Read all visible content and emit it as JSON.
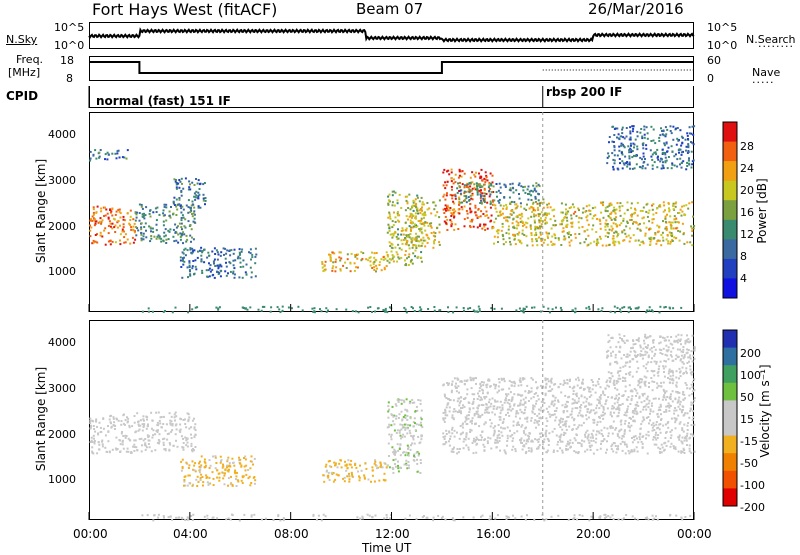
{
  "header": {
    "radar": "Fort Hays West (fitACF)",
    "beam": "Beam 07",
    "date": "26/Mar/2016"
  },
  "summary_panel": {
    "nsky_label": "N.Sky",
    "nsky_ticks": [
      "10^5",
      "10^0"
    ],
    "nsearch_label": "N.Search",
    "nsearch_ticks": [
      "10^5",
      "10^0"
    ],
    "freq_label_1": "Freq.",
    "freq_label_2": "[MHz]",
    "freq_ticks": [
      "18",
      "8"
    ],
    "nave_label": "Nave",
    "nave_ticks": [
      "60",
      "0"
    ],
    "cpid_label": "CPID",
    "cpid_modes": [
      "normal (fast) 151 IF",
      "rbsp 200 IF"
    ]
  },
  "power_panel": {
    "ylabel": "Slant Range [km]",
    "yticks": [
      "4000",
      "3000",
      "2000",
      "1000"
    ],
    "colorbar_label": "Power [dB]",
    "colorbar_ticks": [
      "28",
      "24",
      "20",
      "16",
      "12",
      "8",
      "4"
    ]
  },
  "velocity_panel": {
    "ylabel": "Slant Range [km]",
    "yticks": [
      "4000",
      "3000",
      "2000",
      "1000"
    ],
    "colorbar_label": "Velocity [m s⁻¹]",
    "colorbar_ticks": [
      "200",
      "100",
      "50",
      "15",
      "-15",
      "-50",
      "-100",
      "-200"
    ]
  },
  "xaxis": {
    "label": "Time UT",
    "ticks": [
      "00:00",
      "04:00",
      "08:00",
      "12:00",
      "16:00",
      "20:00",
      "00:00"
    ]
  },
  "colors": {
    "power_scale": [
      "#1010e0",
      "#2040c0",
      "#3a6aa0",
      "#3a8a70",
      "#7aa040",
      "#c8c820",
      "#f0a010",
      "#f06010",
      "#e01010"
    ],
    "velocity_scale": [
      "#e00000",
      "#f05000",
      "#f08000",
      "#f0b020",
      "#c8c8c8",
      "#c8c8c8",
      "#70c040",
      "#40a060",
      "#3070a0",
      "#2030b0"
    ]
  },
  "chart_data": [
    {
      "type": "heatmap",
      "title": "Power",
      "xlabel": "Time UT",
      "ylabel": "Slant Range [km]",
      "xlim": [
        0,
        24
      ],
      "ylim": [
        0,
        4600
      ],
      "colorbar": {
        "label": "Power [dB]",
        "range": [
          0,
          32
        ]
      },
      "blobs": [
        {
          "t0": 0.0,
          "t1": 1.8,
          "r0": 1550,
          "r1": 2450,
          "power": 26
        },
        {
          "t0": 0.0,
          "t1": 1.5,
          "r0": 3500,
          "r1": 3750,
          "power": 10
        },
        {
          "t0": 1.8,
          "t1": 4.2,
          "r0": 1600,
          "r1": 2500,
          "power": 12
        },
        {
          "t0": 3.3,
          "t1": 4.6,
          "r0": 2400,
          "r1": 3100,
          "power": 10
        },
        {
          "t0": 3.6,
          "t1": 6.6,
          "r0": 800,
          "r1": 1500,
          "power": 9
        },
        {
          "t0": 9.2,
          "t1": 11.8,
          "r0": 950,
          "r1": 1400,
          "power": 22
        },
        {
          "t0": 11.8,
          "t1": 13.2,
          "r0": 1100,
          "r1": 2800,
          "power": 18
        },
        {
          "t0": 12.5,
          "t1": 13.9,
          "r0": 1500,
          "r1": 2600,
          "power": 20
        },
        {
          "t0": 14.0,
          "t1": 16.0,
          "r0": 1900,
          "r1": 3300,
          "power": 27
        },
        {
          "t0": 16.0,
          "t1": 24.0,
          "r0": 1550,
          "r1": 2550,
          "power": 20
        },
        {
          "t0": 14.5,
          "t1": 18.0,
          "r0": 2500,
          "r1": 3000,
          "power": 12
        },
        {
          "t0": 20.5,
          "t1": 24.0,
          "r0": 3300,
          "r1": 4300,
          "power": 9
        }
      ]
    },
    {
      "type": "heatmap",
      "title": "Velocity",
      "xlabel": "Time UT",
      "ylabel": "Slant Range [km]",
      "xlim": [
        0,
        24
      ],
      "ylim": [
        0,
        4600
      ],
      "colorbar": {
        "label": "Velocity [m s⁻¹]",
        "range": [
          -250,
          250
        ]
      },
      "blobs": [
        {
          "t0": 0.0,
          "t1": 1.8,
          "r0": 1550,
          "r1": 2450,
          "velocity": 0
        },
        {
          "t0": 1.8,
          "t1": 4.2,
          "r0": 1600,
          "r1": 2500,
          "velocity": 0
        },
        {
          "t0": 3.6,
          "t1": 6.6,
          "r0": 800,
          "r1": 1500,
          "velocity": -60
        },
        {
          "t0": 9.2,
          "t1": 11.8,
          "r0": 900,
          "r1": 1400,
          "velocity": -60
        },
        {
          "t0": 11.8,
          "t1": 13.2,
          "r0": 1100,
          "r1": 2800,
          "velocity": 40
        },
        {
          "t0": 14.0,
          "t1": 24.0,
          "r0": 1550,
          "r1": 3300,
          "velocity": 0
        },
        {
          "t0": 20.5,
          "t1": 24.0,
          "r0": 3300,
          "r1": 4300,
          "velocity": 0
        }
      ]
    }
  ]
}
